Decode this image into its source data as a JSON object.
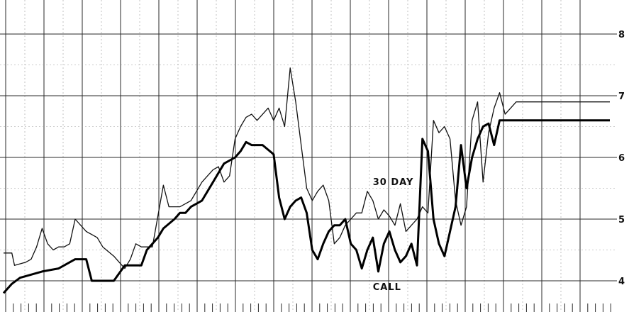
{
  "chart_data": {
    "type": "line",
    "title": "",
    "xlabel": "",
    "ylabel": "",
    "ylim": [
      3.5,
      8.5
    ],
    "yticks": [
      "4",
      "5",
      "6",
      "7",
      "8"
    ],
    "grid": true,
    "x_count": 221,
    "series": [
      {
        "name": "30 DAY",
        "style": "thin",
        "color": "#111111",
        "x": [
          0,
          3,
          4,
          8,
          10,
          12,
          14,
          16,
          18,
          20,
          22,
          24,
          26,
          30,
          34,
          36,
          40,
          42,
          44,
          46,
          48,
          50,
          54,
          58,
          60,
          64,
          66,
          68,
          72,
          74,
          76,
          78,
          80,
          82,
          84,
          86,
          88,
          90,
          92,
          96,
          98,
          100,
          102,
          104,
          106,
          108,
          110,
          112,
          114,
          116,
          118,
          120,
          122,
          124,
          126,
          128,
          130,
          132,
          134,
          136,
          138,
          140,
          142,
          144,
          146,
          148,
          150,
          152,
          154,
          156,
          158,
          160,
          162,
          164,
          166,
          168,
          170,
          172,
          174,
          176,
          178,
          180,
          182,
          184,
          186,
          188,
          190,
          192,
          194,
          196,
          198,
          200,
          202,
          204,
          206,
          208,
          210,
          212,
          214,
          216,
          218,
          220
        ],
        "values": [
          4.45,
          4.45,
          4.25,
          4.3,
          4.35,
          4.55,
          4.85,
          4.6,
          4.5,
          4.55,
          4.55,
          4.6,
          5.0,
          4.8,
          4.7,
          4.55,
          4.4,
          4.3,
          4.2,
          4.35,
          4.6,
          4.55,
          4.55,
          5.55,
          5.2,
          5.2,
          5.25,
          5.3,
          5.6,
          5.7,
          5.8,
          5.85,
          5.6,
          5.7,
          6.3,
          6.5,
          6.65,
          6.7,
          6.6,
          6.8,
          6.6,
          6.8,
          6.5,
          7.45,
          6.9,
          6.2,
          5.5,
          5.3,
          5.45,
          5.55,
          5.3,
          4.6,
          4.7,
          4.9,
          5.0,
          5.1,
          5.1,
          5.45,
          5.3,
          5.0,
          5.15,
          5.05,
          4.9,
          5.25,
          4.8,
          4.9,
          5.0,
          5.2,
          5.1,
          6.6,
          6.4,
          6.5,
          6.3,
          5.3,
          4.9,
          5.2,
          6.6,
          6.9,
          5.6,
          6.4,
          6.8,
          7.05,
          6.7,
          6.8,
          6.9,
          6.9,
          6.9,
          6.9,
          6.9,
          6.9,
          6.9,
          6.9,
          6.9,
          6.9,
          6.9,
          6.9,
          6.9,
          6.9,
          6.9,
          6.9,
          6.9,
          6.9
        ],
        "note": ""
      },
      {
        "name": "CALL",
        "style": "bold",
        "color": "#000000",
        "x": [
          0,
          3,
          6,
          10,
          14,
          20,
          26,
          30,
          32,
          36,
          40,
          44,
          46,
          50,
          52,
          56,
          58,
          62,
          64,
          66,
          68,
          72,
          76,
          80,
          84,
          86,
          88,
          90,
          94,
          98,
          100,
          102,
          104,
          106,
          108,
          110,
          112,
          114,
          116,
          118,
          120,
          122,
          124,
          126,
          128,
          130,
          132,
          134,
          136,
          138,
          140,
          142,
          144,
          146,
          148,
          150,
          152,
          154,
          156,
          158,
          160,
          162,
          164,
          166,
          168,
          170,
          172,
          174,
          176,
          178,
          180,
          182,
          184,
          186,
          188,
          190,
          192,
          194,
          196,
          198,
          200,
          202,
          204,
          206,
          208,
          210,
          212,
          214,
          216,
          218,
          220
        ],
        "values": [
          3.8,
          3.95,
          4.05,
          4.1,
          4.15,
          4.2,
          4.35,
          4.35,
          4.0,
          4.0,
          4.0,
          4.25,
          4.25,
          4.25,
          4.5,
          4.7,
          4.85,
          5.0,
          5.1,
          5.1,
          5.2,
          5.3,
          5.6,
          5.9,
          6.0,
          6.1,
          6.25,
          6.2,
          6.2,
          6.05,
          5.35,
          5.0,
          5.2,
          5.3,
          5.35,
          5.1,
          4.5,
          4.35,
          4.6,
          4.8,
          4.9,
          4.9,
          5.0,
          4.6,
          4.5,
          4.2,
          4.5,
          4.7,
          4.15,
          4.6,
          4.8,
          4.5,
          4.3,
          4.4,
          4.6,
          4.25,
          6.3,
          6.1,
          5.0,
          4.6,
          4.4,
          4.8,
          5.2,
          6.2,
          5.5,
          6.0,
          6.3,
          6.5,
          6.55,
          6.2,
          6.6,
          6.6,
          6.6,
          6.6,
          6.6,
          6.6,
          6.6,
          6.6,
          6.6,
          6.6,
          6.6,
          6.6,
          6.6,
          6.6,
          6.6,
          6.6,
          6.6,
          6.6,
          6.6,
          6.6,
          6.6
        ],
        "note": ""
      }
    ],
    "labels": [
      {
        "text": "30 DAY",
        "series": "30 DAY",
        "x": 134,
        "y": 5.55
      },
      {
        "text": "CALL",
        "series": "CALL",
        "x": 134,
        "y": 3.85
      }
    ]
  }
}
